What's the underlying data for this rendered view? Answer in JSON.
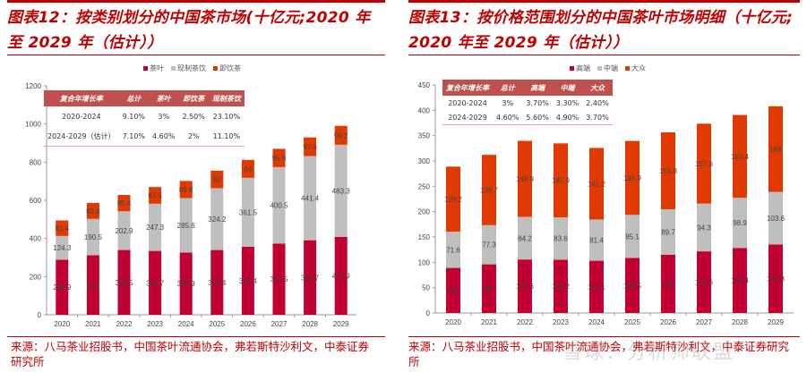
{
  "colors": {
    "accent": "#c00000",
    "series1": "#c00030",
    "series2": "#bfbfbf",
    "series3": "#e03a00"
  },
  "left": {
    "title_line1": "图表12：按类别划分的中国茶市场(十亿元;2020 年",
    "title_line2": "至 2029 年（估计））",
    "source_line1": "来源：八马茶业招股书，中国茶叶流通协会，弗若斯特沙利文，中泰证券",
    "source_line2": "研究所",
    "table": {
      "headers": [
        "复合年增长率",
        "总计",
        "茶叶",
        "即饮茶",
        "现制茶饮"
      ],
      "rows": [
        [
          "2020-2024",
          "9.10%",
          "3%",
          "2.50%",
          "23.10%"
        ],
        [
          "2024-2029（估计）",
          "7.10%",
          "4.60%",
          "2%",
          "11.10%"
        ]
      ]
    }
  },
  "right": {
    "title_line1": "图表13：按价格范围划分的中国茶叶市场明细（十亿元;",
    "title_line2": "2020 年至 2029 年（估计））",
    "source_line1": "来源：八马茶业招股书，中国茶叶流通协会，弗若斯特沙利文，中泰证券研究所",
    "watermark": "雪球：分析师联盟",
    "table": {
      "headers": [
        "复合年增长率",
        "总计",
        "高端",
        "中端",
        "大众"
      ],
      "rows": [
        [
          "2020-2024",
          "3%",
          "3.70%",
          "3.30%",
          "2.40%"
        ],
        [
          "2024-2029",
          "4.60%",
          "5.60%",
          "4.90%",
          "3.70%"
        ]
      ]
    }
  },
  "chart_data": [
    {
      "type": "bar",
      "stacked": true,
      "title": "按类别划分的中国茶市场(十亿元;2020 年至 2029 年（估计）)",
      "categories": [
        "2020",
        "2021",
        "2022",
        "2023",
        "2024",
        "2025",
        "2026",
        "2027",
        "2028",
        "2029"
      ],
      "series": [
        {
          "name": "茶叶",
          "values": [
            288.9,
            312,
            339.5,
            334.7,
            325.9,
            339.4,
            356.4,
            373.5,
            390.7,
            407.9
          ]
        },
        {
          "name": "现制茶饮",
          "values": [
            124.3,
            190.5,
            202.9,
            247.3,
            285.6,
            324.2,
            361.5,
            400.5,
            441.4,
            483.3
          ]
        },
        {
          "name": "即饮茶",
          "values": [
            81.4,
            83.8,
            85.4,
            87.5,
            89.8,
            92,
            94,
            95.9,
            97.6,
            99.2
          ]
        }
      ],
      "ylim": [
        0,
        1200
      ],
      "yticks": [
        "0",
        "200",
        "400",
        "600",
        "800",
        "1000",
        "1200"
      ],
      "legend": "top",
      "grid": false
    },
    {
      "type": "bar",
      "stacked": true,
      "title": "按价格范围划分的中国茶叶市场明细（十亿元;2020 年至 2029 年（估计））",
      "categories": [
        "2020",
        "2021",
        "2022",
        "2023",
        "2024",
        "2025",
        "2026",
        "2027",
        "2028",
        "2029"
      ],
      "series": [
        {
          "name": "高端",
          "values": [
            89,
            96,
            105.6,
            105.2,
            103.1,
            108.5,
            115,
            121.6,
            128.4,
            135.3
          ]
        },
        {
          "name": "中端",
          "values": [
            71.6,
            77.3,
            84.2,
            83.6,
            81.4,
            85.1,
            89.7,
            94.3,
            98.9,
            103.6
          ]
        },
        {
          "name": "大众",
          "values": [
            128.2,
            138.7,
            149.9,
            145.9,
            141.2,
            145.9,
            151.8,
            157.6,
            163.4,
            169
          ]
        }
      ],
      "ylim": [
        0,
        450
      ],
      "yticks": [
        "0",
        "50",
        "100",
        "150",
        "200",
        "250",
        "300",
        "350",
        "400",
        "450"
      ],
      "legend": "top",
      "grid": false
    }
  ]
}
